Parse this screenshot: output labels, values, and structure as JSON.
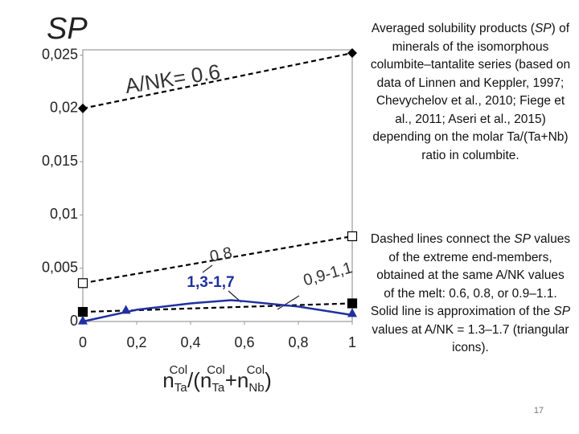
{
  "chart_data": {
    "type": "line",
    "ylabel": "SP",
    "xlabel": [
      "n",
      "Ta",
      "Col",
      "/(n",
      "Ta",
      "Col",
      "+n",
      "Nb",
      "Col",
      ")"
    ],
    "xlim": [
      0,
      1
    ],
    "xticks": [
      0,
      {
        "value": 0.2,
        "label": "0,2"
      },
      {
        "value": 0.4,
        "label": "0,4"
      },
      {
        "value": 0.6,
        "label": "0,6"
      },
      {
        "value": 0.8,
        "label": "0,8"
      },
      1
    ],
    "ylim": [
      0,
      0.0255
    ],
    "yticks": [
      0,
      {
        "value": 0.005,
        "label": "0,005"
      },
      {
        "value": 0.01,
        "label": "0,01"
      },
      {
        "value": 0.015,
        "label": "0,015"
      },
      {
        "value": 0.02,
        "label": "0,02"
      },
      {
        "value": 0.025,
        "label": "0,025"
      }
    ],
    "series": [
      {
        "name": "A/NK= 0.6",
        "color": "#000000",
        "marker": "diamond",
        "dashed": true,
        "x": [
          0,
          1
        ],
        "values": [
          0.02,
          0.0252
        ]
      },
      {
        "name": "0.8",
        "color": "#000000",
        "marker": "square-open",
        "dashed": true,
        "x": [
          0,
          1
        ],
        "values": [
          0.0036,
          0.008
        ]
      },
      {
        "name": "0,9-1,1",
        "color": "#000000",
        "marker": "square",
        "dashed": true,
        "x": [
          0,
          1
        ],
        "values": [
          0.0009,
          0.0017
        ]
      },
      {
        "name": "1,3-1,7",
        "color": "#2030a0",
        "marker": "triangle",
        "dashed": false,
        "x": [
          0,
          0.16,
          1
        ],
        "values": [
          0.0001,
          0.0011,
          0.0008
        ],
        "curve_x": [
          0,
          0.2,
          0.4,
          0.55,
          0.6,
          0.8,
          1
        ],
        "curve_values": [
          0,
          0.0011,
          0.0017,
          0.002,
          0.0019,
          0.0014,
          0.0006
        ]
      }
    ]
  },
  "text": {
    "paragraph1": [
      "Averaged solubility products (",
      "SP",
      ") of minerals of the isomorphous columbite–tantalite series (based on data of Linnen and Keppler, 1997; Chevychelov et al., 2010; Fiege et al., 2011; Aseri et al., 2015) depending on the molar Ta/(Ta+Nb) ratio in columbite."
    ],
    "paragraph2": [
      "Dashed lines connect the ",
      "SP",
      " values of the extreme end-members, obtained at the same A/NK values of the melt: 0.6, 0.8, or 0.9–1.1. Solid line is approximation of the ",
      "SP",
      " values at A/NK = 1.3–1.7 (triangular icons)."
    ],
    "page_number": "17"
  }
}
